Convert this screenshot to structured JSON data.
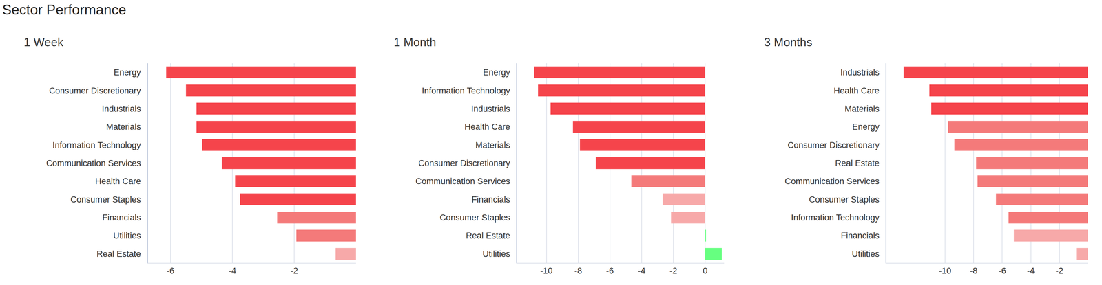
{
  "title": "Sector Performance",
  "chart_data": [
    {
      "type": "bar",
      "title": "1 Week",
      "orientation": "horizontal",
      "grid": true,
      "categories": [
        "Energy",
        "Consumer Discretionary",
        "Industrials",
        "Materials",
        "Information Technology",
        "Communication Services",
        "Health Care",
        "Consumer Staples",
        "Financials",
        "Utilities",
        "Real Estate"
      ],
      "values": [
        -6.14,
        -5.5,
        -5.16,
        -5.16,
        -4.98,
        -4.34,
        -3.91,
        -3.75,
        -2.55,
        -1.93,
        -0.66
      ],
      "colors": [
        "#f5444b",
        "#f5444b",
        "#f5444b",
        "#f5444b",
        "#f5444b",
        "#f5444b",
        "#f5444b",
        "#f5444b",
        "#f47a7a",
        "#f47a7a",
        "#f7a9a9"
      ],
      "xlim": [
        -6.73,
        0
      ],
      "xticks": [
        -6,
        -4,
        -2
      ]
    },
    {
      "type": "bar",
      "title": "1 Month",
      "orientation": "horizontal",
      "grid": true,
      "categories": [
        "Energy",
        "Information Technology",
        "Industrials",
        "Health Care",
        "Materials",
        "Consumer Discretionary",
        "Communication Services",
        "Financials",
        "Consumer Staples",
        "Real Estate",
        "Utilities"
      ],
      "values": [
        -10.79,
        -10.53,
        -9.74,
        -8.33,
        -7.89,
        -6.89,
        -4.65,
        -2.68,
        -2.15,
        0.05,
        1.05
      ],
      "colors": [
        "#f5444b",
        "#f5444b",
        "#f5444b",
        "#f5444b",
        "#f5444b",
        "#f5444b",
        "#f47a7a",
        "#f7a9a9",
        "#f7a9a9",
        "#66ff80",
        "#66ff80"
      ],
      "xlim": [
        -11.84,
        1.2
      ],
      "xticks": [
        -10,
        -8,
        -6,
        -4,
        -2,
        0
      ]
    },
    {
      "type": "bar",
      "title": "3 Months",
      "orientation": "horizontal",
      "grid": true,
      "categories": [
        "Industrials",
        "Health Care",
        "Materials",
        "Energy",
        "Consumer Discretionary",
        "Real Estate",
        "Communication Services",
        "Consumer Staples",
        "Information Technology",
        "Financials",
        "Utilities"
      ],
      "values": [
        -12.9,
        -11.1,
        -10.97,
        -9.8,
        -9.35,
        -7.83,
        -7.73,
        -6.44,
        -5.56,
        -5.19,
        -0.83
      ],
      "colors": [
        "#f5444b",
        "#f5444b",
        "#f5444b",
        "#f47a7a",
        "#f47a7a",
        "#f47a7a",
        "#f47a7a",
        "#f47a7a",
        "#f47a7a",
        "#f7a9a9",
        "#f7a9a9"
      ],
      "xlim": [
        -14.1,
        0
      ],
      "xticks": [
        -10,
        -8,
        -6,
        -4,
        -2
      ]
    }
  ]
}
